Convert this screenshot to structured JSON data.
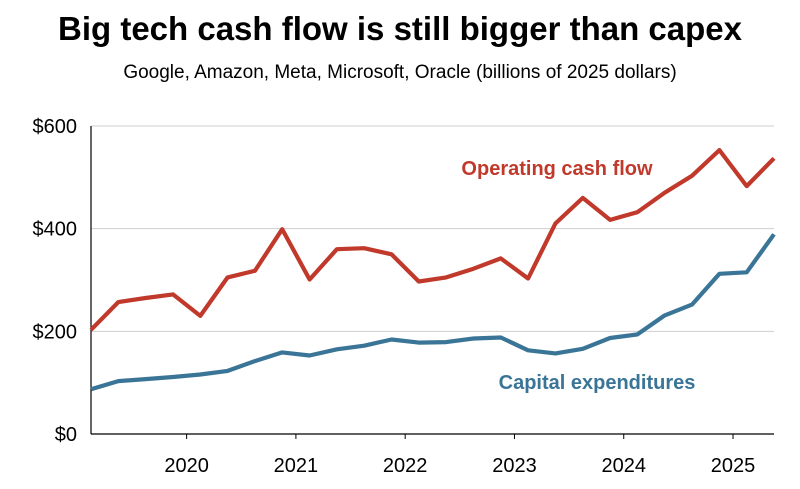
{
  "chart_data": {
    "type": "line",
    "title": "Big tech cash flow is still bigger than capex",
    "subtitle": "Google, Amazon, Meta, Microsoft, Oracle (billions of 2025 dollars)",
    "xlabel": "",
    "ylabel": "",
    "ylim": [
      0,
      600
    ],
    "y_ticks": [
      0,
      200,
      400,
      600
    ],
    "y_tick_labels": [
      "$0",
      "$200",
      "$400",
      "$600"
    ],
    "x_tick_labels": [
      "2020",
      "2021",
      "2022",
      "2023",
      "2024",
      "2025"
    ],
    "x_tick_values": [
      2020,
      2021,
      2022,
      2023,
      2024,
      2025
    ],
    "x_start": 2019.125,
    "x_end": 2025.375,
    "grid": true,
    "x": [
      2019.125,
      2019.375,
      2019.625,
      2019.875,
      2020.125,
      2020.375,
      2020.625,
      2020.875,
      2021.125,
      2021.375,
      2021.625,
      2021.875,
      2022.125,
      2022.375,
      2022.625,
      2022.875,
      2023.125,
      2023.375,
      2023.625,
      2023.875,
      2024.125,
      2024.375,
      2024.625,
      2024.875,
      2025.125,
      2025.375
    ],
    "series": [
      {
        "name": "Operating cash flow",
        "color": "#c0392b",
        "values": [
          203,
          257,
          265,
          272,
          230,
          305,
          318,
          399,
          301,
          360,
          362,
          350,
          297,
          305,
          322,
          342,
          303,
          410,
          460,
          417,
          432,
          470,
          503,
          553,
          483,
          537
        ]
      },
      {
        "name": "Capital expenditures",
        "color": "#3a7597",
        "values": [
          87,
          103,
          107,
          111,
          116,
          123,
          142,
          159,
          153,
          165,
          172,
          184,
          178,
          179,
          186,
          188,
          163,
          157,
          166,
          187,
          194,
          231,
          252,
          312,
          315,
          389
        ]
      }
    ]
  }
}
